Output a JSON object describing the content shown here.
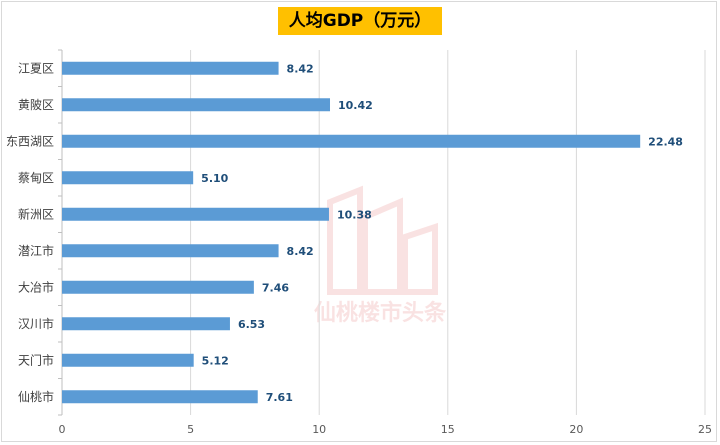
{
  "chart_data": {
    "type": "bar",
    "orientation": "horizontal",
    "title": "人均GDP（万元）",
    "categories": [
      "江夏区",
      "黄陂区",
      "东西湖区",
      "蔡甸区",
      "新洲区",
      "潜江市",
      "大冶市",
      "汉川市",
      "天门市",
      "仙桃市"
    ],
    "values": [
      8.42,
      10.42,
      22.48,
      5.1,
      10.38,
      8.42,
      7.46,
      6.53,
      5.12,
      7.61
    ],
    "value_labels": [
      "8.42",
      "10.42",
      "22.48",
      "5.10",
      "10.38",
      "8.42",
      "7.46",
      "6.53",
      "5.12",
      "7.61"
    ],
    "xlim": [
      0,
      25
    ],
    "xticks": [
      "0",
      "5",
      "10",
      "15",
      "20",
      "25"
    ],
    "xlabel": "",
    "ylabel": "",
    "grid": true,
    "legend": "none",
    "colors": {
      "bar": "#5b9bd5",
      "label": "#1f4e79",
      "title_bg": "#ffc000"
    }
  },
  "watermark": {
    "text": "仙桃楼市头条"
  }
}
